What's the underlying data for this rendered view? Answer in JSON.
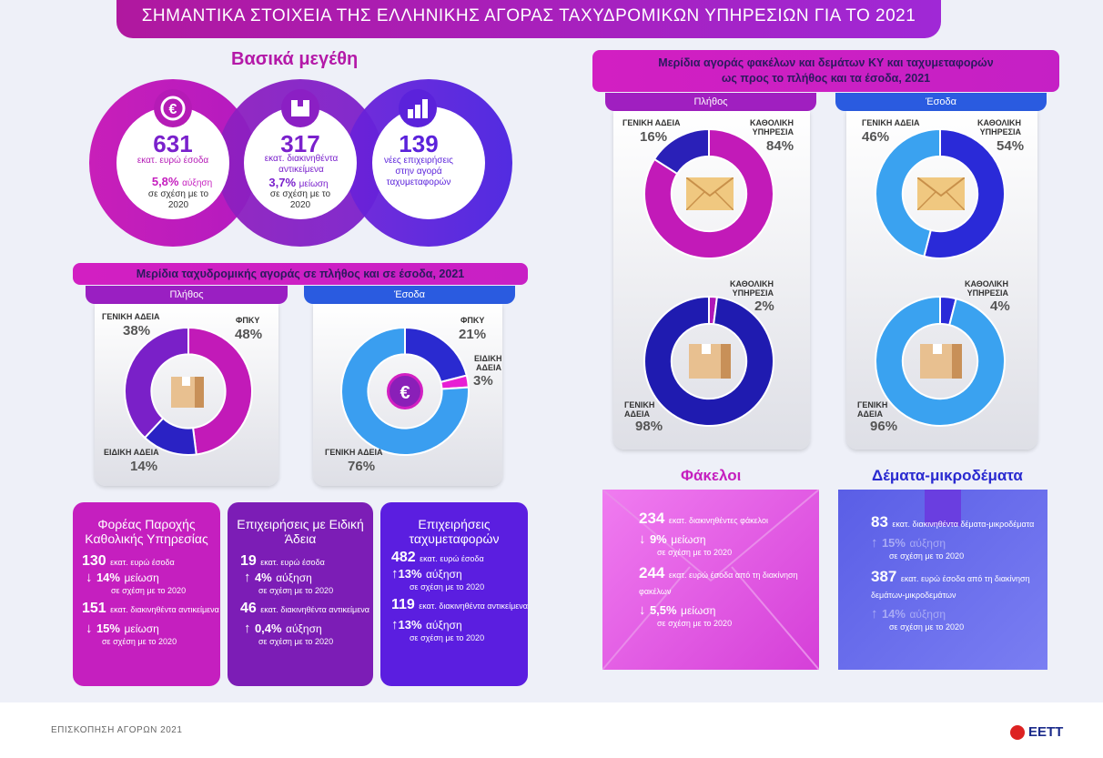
{
  "header": {
    "title": "ΣΗΜΑΝΤΙΚΑ ΣΤΟΙΧΕΙΑ ΤΗΣ ΕΛΛΗΝΙΚΗΣ ΑΓΟΡΑΣ ΤΑΧΥΔΡΟΜΙΚΩΝ ΥΠΗΡΕΣΙΩΝ ΓΙΑ ΤΟ 2021"
  },
  "key_figures": {
    "title": "Βασικά μεγέθη",
    "items": [
      {
        "icon": "euro-growth-icon",
        "value": "631",
        "label": "εκατ. ευρώ έσοδα",
        "change": "5,8%",
        "change_word": "αύξηση",
        "note": "σε σχέση με το 2020"
      },
      {
        "icon": "parcel-box-icon",
        "value": "317",
        "label": "εκατ. διακινηθέντα αντικείμενα",
        "change": "3,7%",
        "change_word": "μείωση",
        "note": "σε σχέση με το 2020"
      },
      {
        "icon": "bar-chart-icon",
        "value": "139",
        "label": "νέες επιχειρήσεις στην αγορά ταχυμεταφορών"
      }
    ]
  },
  "left_share": {
    "title": "Μερίδια ταχυδρομικής αγοράς σε πλήθος και σε έσοδα, 2021",
    "tab_count": "Πλήθος",
    "tab_revenue": "Έσοδα",
    "labels": {
      "general": "ΓΕΝΙΚΗ ΑΔΕΙΑ",
      "fpky": "ΦΠΚΥ",
      "special": "ΕΙΔΙΚΗ ΑΔΕΙΑ",
      "special_split": [
        "ΕΙΔΙΚΗ",
        "ΑΔΕΙΑ"
      ]
    }
  },
  "right_share": {
    "title_line1": "Μερίδια αγοράς φακέλων και δεμάτων ΚΥ και ταχυμεταφορών",
    "title_line2": "ως προς το πλήθος και τα έσοδα, 2021",
    "tab_count": "Πλήθος",
    "tab_revenue": "Έσοδα",
    "labels": {
      "general": "ΓΕΝΙΚΗ ΑΔΕΙΑ",
      "general_split": [
        "ΓΕΝΙΚΗ",
        "ΑΔΕΙΑ"
      ],
      "universal": [
        "ΚΑΘΟΛΙΚΗ",
        "ΥΠΗΡΕΣΙΑ"
      ]
    }
  },
  "chart_data": [
    {
      "type": "pie",
      "title": "Πλήθος",
      "categories": [
        "ΦΠΚΥ",
        "ΕΙΔΙΚΗ ΑΔΕΙΑ",
        "ΓΕΝΙΚΗ ΑΔΕΙΑ"
      ],
      "values": [
        48,
        14,
        38
      ],
      "colors": [
        "#c21ab8",
        "#2a22c4",
        "#7a20c8"
      ]
    },
    {
      "type": "pie",
      "title": "Έσοδα",
      "categories": [
        "ΦΠΚΥ",
        "ΕΙΔΙΚΗ ΑΔΕΙΑ",
        "ΓΕΝΙΚΗ ΑΔΕΙΑ"
      ],
      "values": [
        21,
        3,
        76
      ],
      "colors": [
        "#2a2ad0",
        "#e81fd4",
        "#3a9ef0"
      ]
    },
    {
      "type": "pie",
      "title": "Πλήθος (φάκελοι)",
      "categories": [
        "ΚΑΘΟΛΙΚΗ ΥΠΗΡΕΣΙΑ",
        "ΓΕΝΙΚΗ ΑΔΕΙΑ"
      ],
      "values": [
        84,
        16
      ],
      "colors": [
        "#c21ab8",
        "#2a20b8"
      ]
    },
    {
      "type": "pie",
      "title": "Έσοδα (φάκελοι)",
      "categories": [
        "ΚΑΘΟΛΙΚΗ ΥΠΗΡΕΣΙΑ",
        "ΓΕΝΙΚΗ ΑΔΕΙΑ"
      ],
      "values": [
        54,
        46
      ],
      "colors": [
        "#2a2ad8",
        "#3aa2f0"
      ]
    },
    {
      "type": "pie",
      "title": "Πλήθος (δέματα)",
      "categories": [
        "ΚΑΘΟΛΙΚΗ ΥΠΗΡΕΣΙΑ",
        "ΓΕΝΙΚΗ ΑΔΕΙΑ"
      ],
      "values": [
        2,
        98
      ],
      "colors": [
        "#b018b8",
        "#1f1bb0"
      ]
    },
    {
      "type": "pie",
      "title": "Έσοδα (δέματα)",
      "categories": [
        "ΚΑΘΟΛΙΚΗ ΥΠΗΡΕΣΙΑ",
        "ΓΕΝΙΚΗ ΑΔΕΙΑ"
      ],
      "values": [
        4,
        96
      ],
      "colors": [
        "#2a2ad8",
        "#3aa2f0"
      ]
    }
  ],
  "boxes": [
    {
      "title": "Φορέας Παροχής Καθολικής Υπηρεσίας",
      "color": "#c51fbf",
      "rows": [
        {
          "value": "130",
          "text": "εκατ. ευρώ έσοδα",
          "dir": "down",
          "change": "14%",
          "word": "μείωση",
          "note": "σε σχέση με το 2020"
        },
        {
          "value": "151",
          "text": "εκατ. διακινηθέντα αντικείμενα",
          "dir": "down",
          "change": "15%",
          "word": "μείωση",
          "note": "σε σχέση με το 2020"
        }
      ]
    },
    {
      "title": "Επιχειρήσεις με Ειδική Άδεια",
      "color": "#7c1db6",
      "rows": [
        {
          "value": "19",
          "text": "εκατ. ευρώ έσοδα",
          "dir": "up",
          "change": "4%",
          "word": "αύξηση",
          "note": "σε σχέση με το 2020"
        },
        {
          "value": "46",
          "text": "εκατ. διακινηθέντα αντικείμενα",
          "dir": "up",
          "change": "0,4%",
          "word": "αύξηση",
          "note": "σε σχέση με το 2020"
        }
      ]
    },
    {
      "title": "Επιχειρήσεις ταχυμεταφορών",
      "color": "#5b1ee0",
      "rows": [
        {
          "value": "482",
          "text": "εκατ. ευρώ έσοδα",
          "dir": "up",
          "change": "13%",
          "word": "αύξηση",
          "note": "σε σχέση με το 2020"
        },
        {
          "value": "119",
          "text": "εκατ. διακινηθέντα αντικείμενα",
          "dir": "up",
          "change": "13%",
          "word": "αύξηση",
          "note": "σε σχέση με το 2020"
        }
      ]
    }
  ],
  "letters": {
    "title": "Φάκελοι",
    "rows": [
      {
        "value": "234",
        "text": "εκατ. διακινηθέντες φάκελοι",
        "dir": "down",
        "change": "9%",
        "word": "μείωση",
        "note": "σε σχέση με το 2020"
      },
      {
        "value": "244",
        "text": "εκατ. ευρώ έσοδα από τη διακίνηση φακέλων",
        "dir": "down",
        "change": "5,5%",
        "word": "μείωση",
        "note": "σε σχέση με το 2020"
      }
    ]
  },
  "parcels": {
    "title": "Δέματα-μικροδέματα",
    "rows": [
      {
        "value": "83",
        "text": "εκατ. διακινηθέντα δέματα-μικροδέματα",
        "dir": "up",
        "change": "15%",
        "word": "αύξηση",
        "note": "σε σχέση με το 2020"
      },
      {
        "value": "387",
        "text": "εκατ. ευρώ έσοδα από τη διακίνηση δεμάτων-μικροδεμάτων",
        "dir": "up",
        "change": "14%",
        "word": "αύξηση",
        "note": "σε σχέση με το 2020"
      }
    ]
  },
  "footer": {
    "left": "ΕΠΙΣΚΟΠΗΣΗ ΑΓΟΡΩΝ 2021",
    "logo": "ΕΕΤΤ"
  }
}
